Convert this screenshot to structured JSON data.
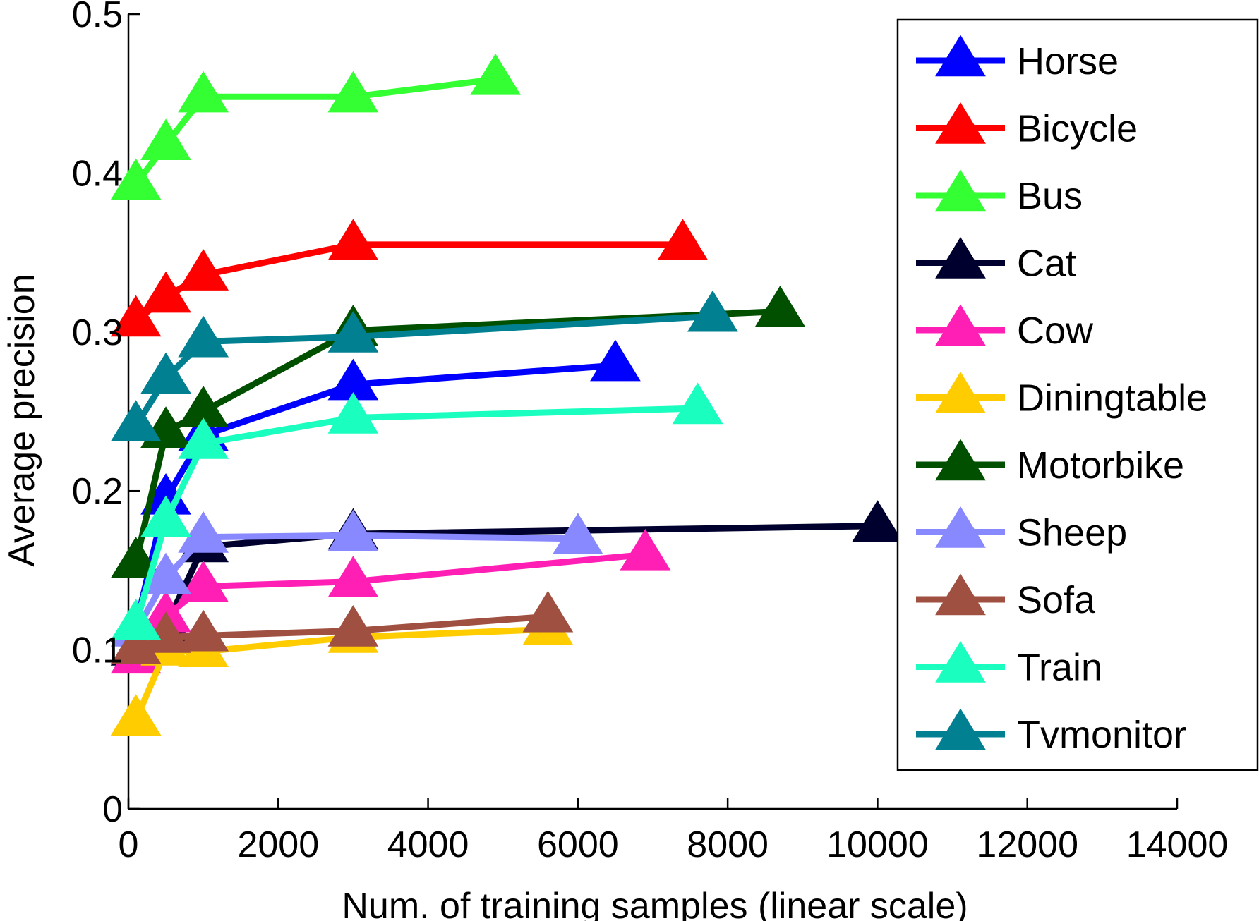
{
  "chart_data": {
    "type": "line",
    "title": "",
    "xlabel": "Num. of training samples (linear scale)",
    "ylabel": "Average precision",
    "xlim": [
      0,
      14000
    ],
    "ylim": [
      0,
      0.5
    ],
    "xticks": [
      0,
      2000,
      4000,
      6000,
      8000,
      10000,
      12000,
      14000
    ],
    "xtick_labels": [
      "0",
      "2000",
      "4000",
      "6000",
      "8000",
      "10000",
      "12000",
      "14000"
    ],
    "yticks": [
      0,
      0.1,
      0.2,
      0.3,
      0.4,
      0.5
    ],
    "ytick_labels": [
      "0",
      "0.1",
      "0.2",
      "0.3",
      "0.4",
      "0.5"
    ],
    "grid": false,
    "legend_position": "top-right",
    "marker": "triangle",
    "series": [
      {
        "name": "Horse",
        "color": "#0000ff",
        "x": [
          100,
          500,
          1000,
          3000,
          6500
        ],
        "y": [
          0.115,
          0.195,
          0.235,
          0.267,
          0.279
        ]
      },
      {
        "name": "Bicycle",
        "color": "#ff0000",
        "x": [
          100,
          500,
          1000,
          3000,
          7400
        ],
        "y": [
          0.307,
          0.322,
          0.336,
          0.355,
          0.355
        ]
      },
      {
        "name": "Bus",
        "color": "#33ff33",
        "x": [
          100,
          500,
          1000,
          3000,
          4900
        ],
        "y": [
          0.393,
          0.418,
          0.448,
          0.448,
          0.459
        ]
      },
      {
        "name": "Cat",
        "color": "#00002e",
        "x": [
          100,
          500,
          1000,
          3000,
          10000
        ],
        "y": [
          0.1,
          0.115,
          0.165,
          0.173,
          0.178
        ]
      },
      {
        "name": "Cow",
        "color": "#ff1fb4",
        "x": [
          100,
          500,
          1000,
          3000,
          6900
        ],
        "y": [
          0.095,
          0.121,
          0.14,
          0.143,
          0.16
        ]
      },
      {
        "name": "Diningtable",
        "color": "#ffcc00",
        "x": [
          100,
          500,
          1000,
          3000,
          5600
        ],
        "y": [
          0.056,
          0.1,
          0.099,
          0.108,
          0.113
        ]
      },
      {
        "name": "Motorbike",
        "color": "#005000",
        "x": [
          100,
          500,
          1000,
          3000,
          8700
        ],
        "y": [
          0.155,
          0.237,
          0.25,
          0.301,
          0.313
        ]
      },
      {
        "name": "Sheep",
        "color": "#8888ff",
        "x": [
          100,
          500,
          1000,
          3000,
          6000
        ],
        "y": [
          0.112,
          0.145,
          0.171,
          0.172,
          0.17
        ]
      },
      {
        "name": "Sofa",
        "color": "#a05040",
        "x": [
          100,
          500,
          1000,
          3000,
          5600
        ],
        "y": [
          0.101,
          0.108,
          0.109,
          0.112,
          0.121
        ]
      },
      {
        "name": "Train",
        "color": "#1affc0",
        "x": [
          100,
          500,
          1000,
          3000,
          7600
        ],
        "y": [
          0.116,
          0.181,
          0.23,
          0.246,
          0.252
        ]
      },
      {
        "name": "Tvmonitor",
        "color": "#008090",
        "x": [
          100,
          500,
          1000,
          3000,
          7800
        ],
        "y": [
          0.241,
          0.271,
          0.294,
          0.297,
          0.31
        ]
      }
    ]
  }
}
